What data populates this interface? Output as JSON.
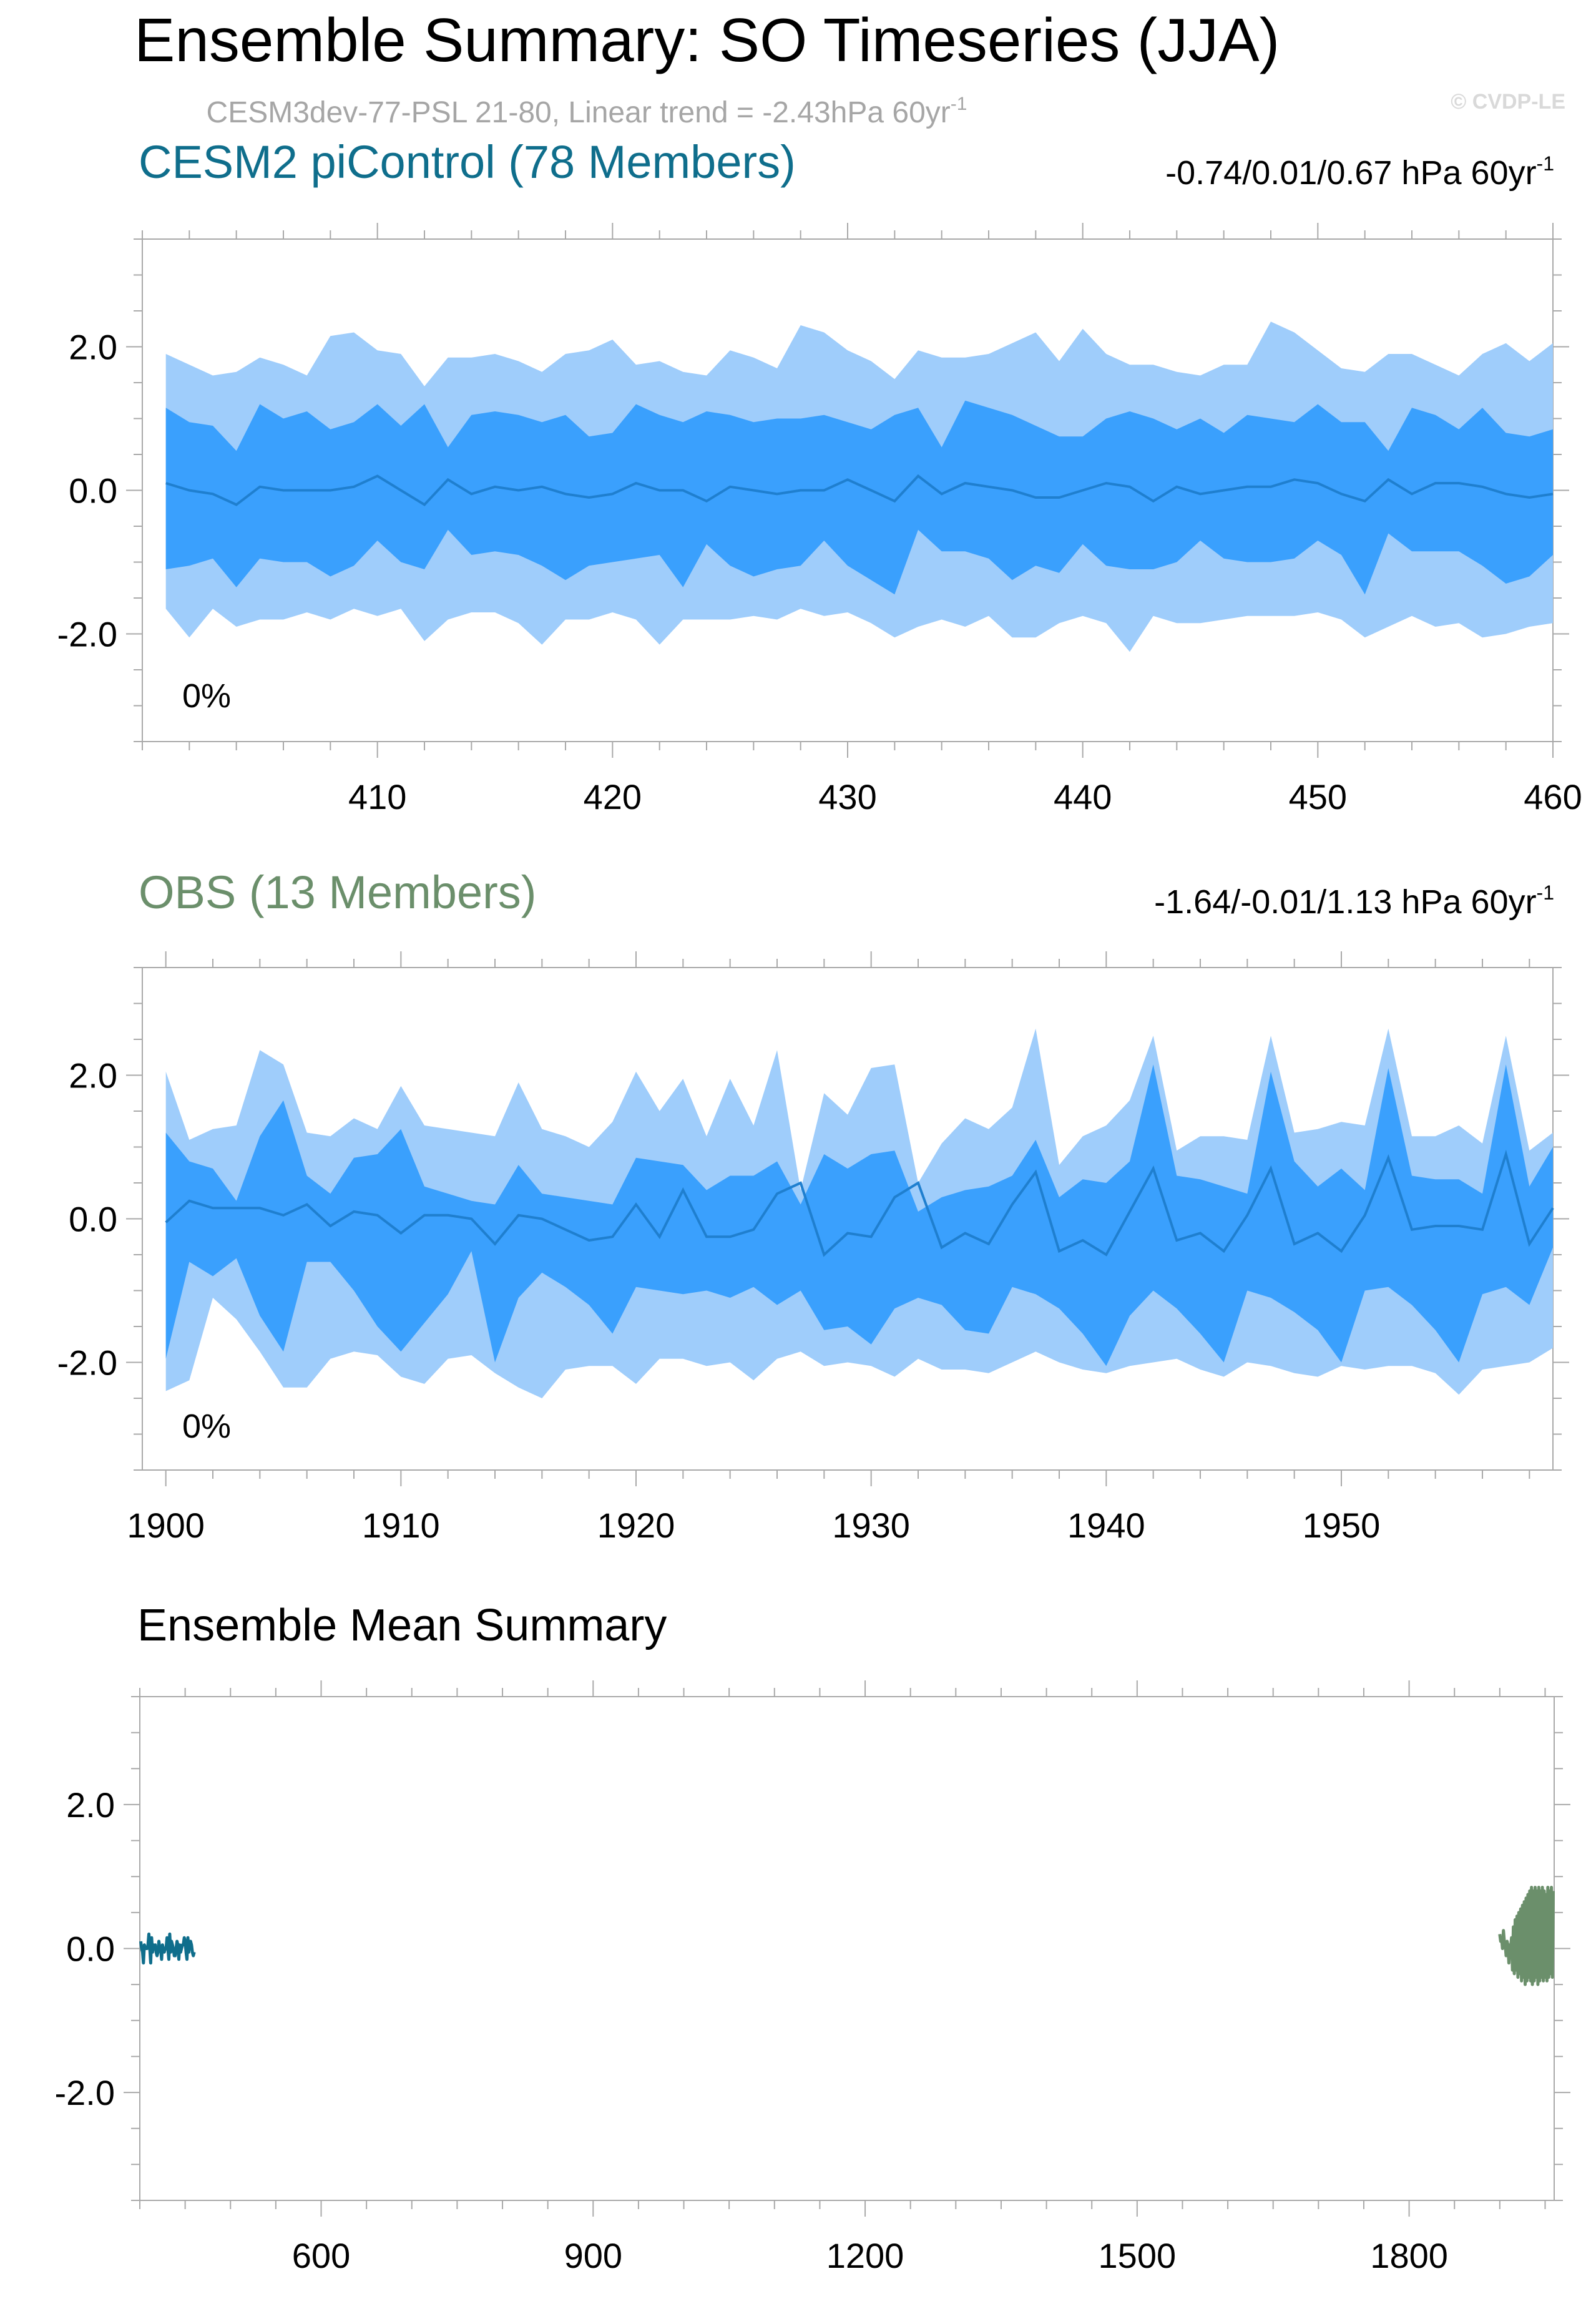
{
  "page": {
    "title": "Ensemble Summary: SO Timeseries (JJA)",
    "subtitle_main": "CESM3dev-77-PSL 21-80, Linear trend = -2.43hPa 60yr",
    "subtitle_sup": "-1",
    "watermark": "© CVDP-LE"
  },
  "colors": {
    "outer_band": "#9fcdfb",
    "inner_band": "#3aa0fd",
    "mean_line": "#1f7fcf",
    "cesm_title": "#0f6e8c",
    "obs_title": "#6b8f6b",
    "subtitle_gray": "#a6a6a6"
  },
  "chart_data": [
    {
      "type": "area",
      "title": "CESM2 piControl (78 Members)",
      "stat_text": "-0.74/0.01/0.67 hPa 60yr",
      "stat_sup": "-1",
      "percent_text": "0%",
      "xlim": [
        400,
        460
      ],
      "ylim": [
        -3.5,
        3.5
      ],
      "x_start": 401,
      "xticks": [
        410,
        420,
        430,
        440,
        450,
        460
      ],
      "yticks": [
        -2.0,
        0.0,
        2.0
      ],
      "ytick_labels": [
        "-2.0",
        "0.0",
        "2.0"
      ],
      "upper_outer": [
        1.9,
        1.75,
        1.6,
        1.65,
        1.85,
        1.75,
        1.6,
        2.15,
        2.2,
        1.95,
        1.9,
        1.45,
        1.85,
        1.85,
        1.9,
        1.8,
        1.65,
        1.9,
        1.95,
        2.1,
        1.75,
        1.8,
        1.65,
        1.6,
        1.95,
        1.85,
        1.7,
        2.3,
        2.2,
        1.95,
        1.8,
        1.55,
        1.95,
        1.85,
        1.85,
        1.9,
        2.05,
        2.2,
        1.8,
        2.25,
        1.9,
        1.75,
        1.75,
        1.65,
        1.6,
        1.75,
        1.75,
        2.35,
        2.2,
        1.95,
        1.7,
        1.65,
        1.9,
        1.9,
        1.75,
        1.6,
        1.9,
        2.05,
        1.8,
        2.05
      ],
      "upper_inner": [
        1.15,
        0.95,
        0.9,
        0.55,
        1.2,
        1.0,
        1.1,
        0.85,
        0.95,
        1.2,
        0.9,
        1.2,
        0.6,
        1.05,
        1.1,
        1.05,
        0.95,
        1.05,
        0.75,
        0.8,
        1.2,
        1.05,
        0.95,
        1.1,
        1.05,
        0.95,
        1.0,
        1.0,
        1.05,
        0.95,
        0.85,
        1.05,
        1.15,
        0.6,
        1.25,
        1.15,
        1.05,
        0.9,
        0.75,
        0.75,
        1.0,
        1.1,
        1.0,
        0.85,
        1.0,
        0.8,
        1.05,
        1.0,
        0.95,
        1.2,
        0.95,
        0.95,
        0.55,
        1.15,
        1.05,
        0.85,
        1.15,
        0.8,
        0.75,
        0.85
      ],
      "mean": [
        0.1,
        0.0,
        -0.05,
        -0.2,
        0.05,
        0.0,
        0.0,
        0.0,
        0.05,
        0.2,
        0.0,
        -0.2,
        0.15,
        -0.05,
        0.05,
        0.0,
        0.05,
        -0.05,
        -0.1,
        -0.05,
        0.1,
        0.0,
        0.0,
        -0.15,
        0.05,
        0.0,
        -0.05,
        0.0,
        0.0,
        0.15,
        0.0,
        -0.15,
        0.2,
        -0.05,
        0.1,
        0.05,
        0.0,
        -0.1,
        -0.1,
        0.0,
        0.1,
        0.05,
        -0.15,
        0.05,
        -0.05,
        0.0,
        0.05,
        0.05,
        0.15,
        0.1,
        -0.05,
        -0.15,
        0.15,
        -0.05,
        0.1,
        0.1,
        0.05,
        -0.05,
        -0.1,
        -0.05
      ],
      "lower_inner": [
        -1.1,
        -1.05,
        -0.95,
        -1.35,
        -0.95,
        -1.0,
        -1.0,
        -1.2,
        -1.05,
        -0.7,
        -1.0,
        -1.1,
        -0.55,
        -0.9,
        -0.85,
        -0.9,
        -1.05,
        -1.25,
        -1.05,
        -1.0,
        -0.95,
        -0.9,
        -1.35,
        -0.75,
        -1.05,
        -1.2,
        -1.1,
        -1.05,
        -0.7,
        -1.05,
        -1.25,
        -1.45,
        -0.55,
        -0.85,
        -0.85,
        -0.95,
        -1.25,
        -1.05,
        -1.15,
        -0.75,
        -1.05,
        -1.1,
        -1.1,
        -1.0,
        -0.7,
        -0.95,
        -1.0,
        -1.0,
        -0.95,
        -0.7,
        -0.9,
        -1.45,
        -0.6,
        -0.85,
        -0.85,
        -0.85,
        -1.05,
        -1.3,
        -1.2,
        -0.9
      ],
      "lower_outer": [
        -1.65,
        -2.05,
        -1.65,
        -1.9,
        -1.8,
        -1.8,
        -1.7,
        -1.8,
        -1.65,
        -1.75,
        -1.65,
        -2.1,
        -1.8,
        -1.7,
        -1.7,
        -1.85,
        -2.15,
        -1.8,
        -1.8,
        -1.7,
        -1.8,
        -2.15,
        -1.8,
        -1.8,
        -1.8,
        -1.75,
        -1.8,
        -1.65,
        -1.75,
        -1.7,
        -1.85,
        -2.05,
        -1.9,
        -1.8,
        -1.9,
        -1.75,
        -2.05,
        -2.05,
        -1.85,
        -1.75,
        -1.85,
        -2.25,
        -1.75,
        -1.85,
        -1.85,
        -1.8,
        -1.75,
        -1.75,
        -1.75,
        -1.7,
        -1.8,
        -2.05,
        -1.9,
        -1.75,
        -1.9,
        -1.85,
        -2.05,
        -2.0,
        -1.9,
        -1.85
      ]
    },
    {
      "type": "area",
      "title": "OBS (13 Members)",
      "stat_text": "-1.64/-0.01/1.13 hPa 60yr",
      "stat_sup": "-1",
      "percent_text": "0%",
      "xlim": [
        1899,
        1959
      ],
      "ylim": [
        -3.5,
        3.5
      ],
      "x_start": 1900,
      "xticks": [
        1900,
        1910,
        1920,
        1930,
        1940,
        1950
      ],
      "yticks": [
        -2.0,
        0.0,
        2.0
      ],
      "ytick_labels": [
        "-2.0",
        "0.0",
        "2.0"
      ],
      "upper_outer": [
        2.05,
        1.1,
        1.25,
        1.3,
        2.35,
        2.15,
        1.2,
        1.15,
        1.4,
        1.25,
        1.85,
        1.3,
        1.25,
        1.2,
        1.15,
        1.9,
        1.25,
        1.15,
        1.0,
        1.35,
        2.05,
        1.5,
        1.95,
        1.15,
        1.95,
        1.3,
        2.35,
        0.4,
        1.75,
        1.45,
        2.1,
        2.15,
        0.5,
        1.05,
        1.4,
        1.25,
        1.55,
        2.65,
        0.75,
        1.15,
        1.3,
        1.65,
        2.55,
        0.95,
        1.15,
        1.15,
        1.1,
        2.55,
        1.2,
        1.25,
        1.35,
        1.3,
        2.65,
        1.15,
        1.15,
        1.3,
        1.05,
        2.55,
        0.95,
        1.2
      ],
      "upper_inner": [
        1.2,
        0.8,
        0.7,
        0.25,
        1.15,
        1.65,
        0.6,
        0.35,
        0.85,
        0.9,
        1.25,
        0.45,
        0.35,
        0.25,
        0.2,
        0.75,
        0.35,
        0.3,
        0.25,
        0.2,
        0.85,
        0.8,
        0.75,
        0.4,
        0.6,
        0.6,
        0.8,
        0.2,
        0.9,
        0.7,
        0.9,
        0.95,
        0.1,
        0.3,
        0.4,
        0.45,
        0.6,
        1.1,
        0.3,
        0.55,
        0.5,
        0.8,
        2.15,
        0.6,
        0.55,
        0.45,
        0.35,
        2.05,
        0.8,
        0.45,
        0.7,
        0.4,
        2.1,
        0.6,
        0.55,
        0.55,
        0.35,
        2.15,
        0.45,
        1.0
      ],
      "mean": [
        -0.05,
        0.25,
        0.15,
        0.15,
        0.15,
        0.05,
        0.2,
        -0.1,
        0.1,
        0.05,
        -0.2,
        0.05,
        0.05,
        0.0,
        -0.35,
        0.05,
        0.0,
        -0.15,
        -0.3,
        -0.25,
        0.2,
        -0.25,
        0.4,
        -0.25,
        -0.25,
        -0.15,
        0.35,
        0.5,
        -0.5,
        -0.2,
        -0.25,
        0.3,
        0.5,
        -0.4,
        -0.2,
        -0.35,
        0.2,
        0.65,
        -0.45,
        -0.3,
        -0.5,
        0.1,
        0.7,
        -0.3,
        -0.2,
        -0.45,
        0.05,
        0.7,
        -0.35,
        -0.2,
        -0.45,
        0.05,
        0.85,
        -0.15,
        -0.1,
        -0.1,
        -0.15,
        0.9,
        -0.35,
        0.15
      ],
      "lower_inner": [
        -1.95,
        -0.6,
        -0.8,
        -0.55,
        -1.35,
        -1.85,
        -0.6,
        -0.6,
        -1.0,
        -1.5,
        -1.85,
        -1.45,
        -1.05,
        -0.45,
        -2.0,
        -1.1,
        -0.75,
        -0.95,
        -1.2,
        -1.6,
        -0.95,
        -1.0,
        -1.05,
        -1.0,
        -1.1,
        -0.95,
        -1.2,
        -1.0,
        -1.55,
        -1.5,
        -1.75,
        -1.25,
        -1.1,
        -1.2,
        -1.55,
        -1.6,
        -0.95,
        -1.05,
        -1.25,
        -1.6,
        -2.05,
        -1.35,
        -1.0,
        -1.25,
        -1.6,
        -2.0,
        -1.0,
        -1.1,
        -1.3,
        -1.55,
        -2.0,
        -1.0,
        -0.95,
        -1.2,
        -1.55,
        -2.0,
        -1.05,
        -0.95,
        -1.2,
        -0.4
      ],
      "lower_outer": [
        -2.4,
        -2.25,
        -1.1,
        -1.4,
        -1.85,
        -2.35,
        -2.35,
        -1.95,
        -1.85,
        -1.9,
        -2.2,
        -2.3,
        -1.95,
        -1.9,
        -2.15,
        -2.35,
        -2.5,
        -2.1,
        -2.05,
        -2.05,
        -2.3,
        -1.95,
        -1.95,
        -2.05,
        -2.0,
        -2.25,
        -1.95,
        -1.85,
        -2.05,
        -2.0,
        -2.05,
        -2.2,
        -1.95,
        -2.1,
        -2.1,
        -2.15,
        -2.0,
        -1.85,
        -2.0,
        -2.1,
        -2.15,
        -2.05,
        -2.0,
        -1.95,
        -2.1,
        -2.2,
        -2.0,
        -2.05,
        -2.15,
        -2.2,
        -2.05,
        -2.1,
        -2.05,
        -2.05,
        -2.15,
        -2.45,
        -2.1,
        -2.05,
        -2.0,
        -1.8
      ]
    },
    {
      "type": "line",
      "title": "Ensemble Mean Summary",
      "xlim": [
        400,
        1960
      ],
      "ylim": [
        -3.5,
        3.5
      ],
      "xticks": [
        600,
        900,
        1200,
        1500,
        1800
      ],
      "yticks": [
        -2.0,
        0.0,
        2.0
      ],
      "ytick_labels": [
        "-2.0",
        "0.0",
        "2.0"
      ],
      "series": [
        {
          "x_start": 401,
          "x_end": 460,
          "values": [
            0.1,
            0.0,
            -0.05,
            -0.2,
            0.05,
            0.0,
            0.0,
            0.0,
            0.05,
            0.2,
            0.0,
            -0.2,
            0.15,
            -0.05,
            0.05,
            0.0,
            0.05,
            -0.05,
            -0.1,
            -0.05,
            0.1,
            0.0,
            0.0,
            -0.15,
            0.05,
            0.0,
            -0.05,
            0.0,
            0.0,
            0.15,
            0.0,
            -0.15,
            0.2,
            -0.05,
            0.1,
            0.05,
            0.0,
            -0.1,
            -0.1,
            0.0,
            0.1,
            0.05,
            -0.15,
            0.05,
            -0.05,
            0.0,
            0.05,
            0.05,
            0.15,
            0.1,
            -0.05,
            -0.15,
            0.15,
            -0.05,
            0.1,
            0.1,
            0.05,
            -0.05,
            -0.1,
            -0.05
          ],
          "color": "#0f6e8c"
        },
        {
          "x_start": 1900,
          "x_end": 1959,
          "values": [
            0.2,
            0.1,
            0.15,
            0.0,
            0.25,
            0.1,
            0.05,
            -0.1,
            0.1,
            0.05,
            -0.2,
            0.05,
            0.0,
            0.15,
            -0.3,
            0.3,
            -0.35,
            0.4,
            -0.3,
            0.45,
            -0.4,
            0.5,
            -0.35,
            0.55,
            -0.45,
            0.6,
            -0.4,
            0.65,
            -0.5,
            0.7,
            -0.45,
            0.75,
            -0.4,
            0.8,
            -0.45,
            0.85,
            -0.5,
            0.8,
            -0.45,
            0.85,
            -0.4,
            0.8,
            -0.5,
            0.85,
            -0.45,
            0.8,
            -0.4,
            0.85,
            -0.45,
            0.8,
            -0.4,
            0.75,
            -0.45,
            0.85,
            -0.4,
            0.8,
            -0.35,
            0.85,
            -0.4,
            0.8
          ],
          "color": "#6b8f6b"
        }
      ]
    }
  ]
}
